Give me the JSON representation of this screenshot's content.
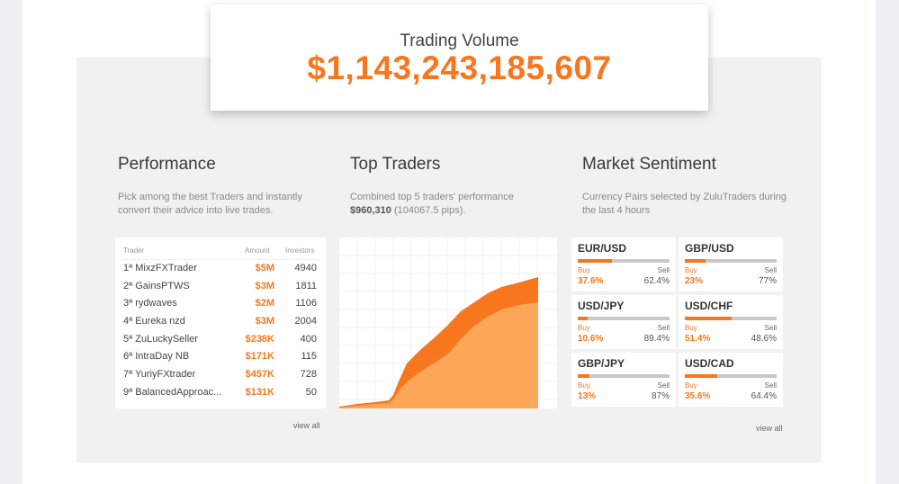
{
  "volume": {
    "label": "Trading Volume",
    "value": "$1,143,243,185,607"
  },
  "performance": {
    "title": "Performance",
    "description": "Pick among the best Traders and instantly convert their advice into live trades.",
    "columns": {
      "trader": "Trader",
      "amount": "Amount",
      "investors": "Investors"
    },
    "rows": [
      {
        "name": "1ª MixzFXTrader",
        "amount": "$5M",
        "investors": "4940"
      },
      {
        "name": "2ª GainsPTWS",
        "amount": "$3M",
        "investors": "1811"
      },
      {
        "name": "3ª rydwaves",
        "amount": "$2M",
        "investors": "1106"
      },
      {
        "name": "4ª Eureka nzd",
        "amount": "$3M",
        "investors": "2004"
      },
      {
        "name": "5ª ZuLuckySeller",
        "amount": "$238K",
        "investors": "400"
      },
      {
        "name": "6ª IntraDay NB",
        "amount": "$171K",
        "investors": "115"
      },
      {
        "name": "7ª YuriyFXtrader",
        "amount": "$457K",
        "investors": "728"
      },
      {
        "name": "9ª BalancedApproac...",
        "amount": "$131K",
        "investors": "50"
      }
    ],
    "view_all": "view all"
  },
  "top_traders": {
    "title": "Top Traders",
    "description_prefix": "Combined top 5 traders' performance",
    "amount": "$960,310",
    "pips": "(104067.5 pips)."
  },
  "sentiment": {
    "title": "Market Sentiment",
    "description": "Currency Pairs selected by ZuluTraders during the last 4 hours",
    "buy_label": "Buy",
    "sell_label": "Sell",
    "pairs": [
      {
        "pair": "EUR/USD",
        "buy": "37.6%",
        "sell": "62.4%",
        "buy_fraction": 0.376
      },
      {
        "pair": "GBP/USD",
        "buy": "23%",
        "sell": "77%",
        "buy_fraction": 0.23
      },
      {
        "pair": "USD/JPY",
        "buy": "10.6%",
        "sell": "89.4%",
        "buy_fraction": 0.106
      },
      {
        "pair": "USD/CHF",
        "buy": "51.4%",
        "sell": "48.6%",
        "buy_fraction": 0.514
      },
      {
        "pair": "GBP/JPY",
        "buy": "13%",
        "sell": "87%",
        "buy_fraction": 0.13
      },
      {
        "pair": "USD/CAD",
        "buy": "35.6%",
        "sell": "64.4%",
        "buy_fraction": 0.356
      }
    ],
    "view_all": "view all"
  },
  "colors": {
    "accent": "#f7761e",
    "accent_light": "#fba757",
    "panel": "#f1f1f1"
  }
}
